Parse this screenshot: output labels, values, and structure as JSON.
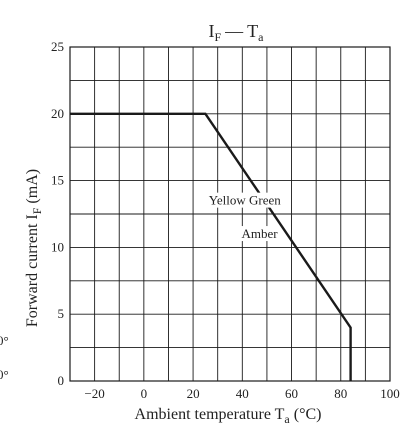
{
  "chart_data": {
    "type": "line",
    "title": {
      "main": "I",
      "main_sub": "F",
      "dash": "—",
      "var": "T",
      "var_sub": "a"
    },
    "xlabel": {
      "text": "Ambient temperature  T",
      "sub": "a",
      "unit": " (°C)"
    },
    "ylabel": {
      "text": "Forward current  I",
      "sub": "F",
      "unit": " (mA)"
    },
    "xlim": [
      -30,
      100
    ],
    "ylim": [
      0,
      25
    ],
    "x_ticks": [
      -20,
      0,
      20,
      40,
      60,
      80,
      100
    ],
    "y_ticks": [
      0,
      5,
      10,
      15,
      20,
      25
    ],
    "x_grid_step": 10,
    "y_grid_step": 2.5,
    "grid": true,
    "series": [
      {
        "name": "Yellow Green / Amber",
        "x": [
          -30,
          25,
          84,
          84
        ],
        "y": [
          20,
          20,
          4,
          0
        ]
      }
    ],
    "annotations": [
      {
        "text": "Yellow Green",
        "x": 41,
        "y": 13.2
      },
      {
        "text": "Amber",
        "x": 47,
        "y": 10.7
      }
    ]
  },
  "side_fragments": [
    "0°",
    "0°"
  ]
}
